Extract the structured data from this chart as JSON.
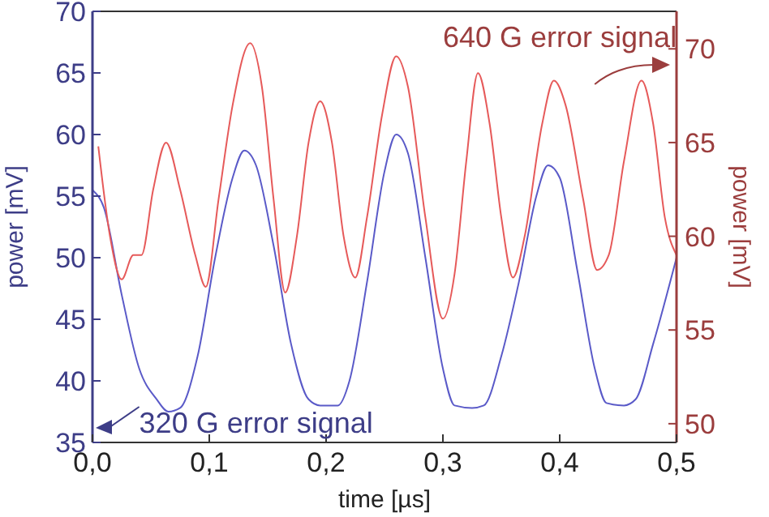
{
  "chart_data": {
    "type": "line",
    "xlabel": "time [µs]",
    "ylabel": "power [mV]",
    "y2label": "power [mV]",
    "xlim": [
      0,
      0.5
    ],
    "xticks": [
      {
        "value": 0,
        "label": "0,0"
      },
      {
        "value": 0.1,
        "label": "0,1"
      },
      {
        "value": 0.2,
        "label": "0,2"
      },
      {
        "value": 0.3,
        "label": "0,3"
      },
      {
        "value": 0.4,
        "label": "0,4"
      },
      {
        "value": 0.5,
        "label": "0,5"
      }
    ],
    "ylim": [
      35,
      70
    ],
    "yticks": [
      35,
      40,
      45,
      50,
      55,
      60,
      65,
      70
    ],
    "y2lim": [
      49,
      72
    ],
    "y2ticks": [
      50,
      55,
      60,
      65,
      70
    ],
    "grid": false,
    "marker": "none",
    "line_style": "solid",
    "series": [
      {
        "name": "320 G error signal",
        "color": "#5a5ac8",
        "x": [
          0,
          0.01,
          0.025,
          0.04,
          0.055,
          0.065,
          0.075,
          0.09,
          0.105,
          0.12,
          0.13,
          0.14,
          0.155,
          0.17,
          0.185,
          0.195,
          0.21,
          0.22,
          0.235,
          0.25,
          0.26,
          0.27,
          0.285,
          0.3,
          0.31,
          0.325,
          0.335,
          0.35,
          0.365,
          0.38,
          0.39,
          0.4,
          0.415,
          0.43,
          0.44,
          0.455,
          0.465,
          0.48,
          0.5
        ],
        "values": [
          55.5,
          54,
          47,
          41,
          38.5,
          37.5,
          37.8,
          42,
          50,
          56.5,
          58.7,
          57.5,
          51,
          43,
          38.5,
          38,
          38,
          40,
          48,
          57,
          60,
          58.5,
          50,
          41,
          38,
          37.8,
          38,
          42,
          48,
          55,
          57.5,
          56.5,
          49,
          41,
          38.2,
          38,
          38.5,
          43,
          50
        ]
      },
      {
        "name": "640 G error signal",
        "color": "#e65a5a",
        "axis": "y2",
        "x": [
          0.005,
          0.015,
          0.025,
          0.035,
          0.042,
          0.052,
          0.063,
          0.075,
          0.088,
          0.097,
          0.108,
          0.12,
          0.135,
          0.145,
          0.155,
          0.165,
          0.175,
          0.185,
          0.195,
          0.205,
          0.215,
          0.225,
          0.235,
          0.248,
          0.26,
          0.27,
          0.285,
          0.3,
          0.31,
          0.32,
          0.33,
          0.34,
          0.35,
          0.36,
          0.37,
          0.385,
          0.395,
          0.405,
          0.42,
          0.432,
          0.442,
          0.455,
          0.47,
          0.48,
          0.49,
          0.5
        ],
        "values": [
          64.8,
          60,
          57.7,
          59,
          59,
          62.5,
          65,
          62.5,
          59,
          57.3,
          62,
          67,
          70.3,
          68,
          62,
          57,
          60,
          65,
          67.2,
          65,
          60,
          57.8,
          61,
          66.5,
          69.6,
          68,
          61,
          55.6,
          58,
          64,
          68.7,
          66,
          61,
          57.8,
          60,
          66,
          68.3,
          67,
          62,
          58.2,
          59,
          64,
          68.3,
          66,
          61,
          59
        ]
      }
    ]
  }
}
